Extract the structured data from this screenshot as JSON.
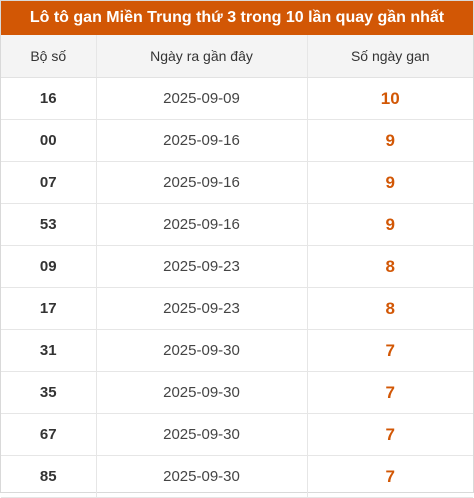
{
  "title": "Lô tô gan Miền Trung thứ 3 trong 10 lần quay gần nhất",
  "columns": {
    "number": "Bộ số",
    "last_date": "Ngày ra gần đây",
    "days": "Số ngày gan"
  },
  "rows": [
    {
      "number": "16",
      "last_date": "2025-09-09",
      "days": "10"
    },
    {
      "number": "00",
      "last_date": "2025-09-16",
      "days": "9"
    },
    {
      "number": "07",
      "last_date": "2025-09-16",
      "days": "9"
    },
    {
      "number": "53",
      "last_date": "2025-09-16",
      "days": "9"
    },
    {
      "number": "09",
      "last_date": "2025-09-23",
      "days": "8"
    },
    {
      "number": "17",
      "last_date": "2025-09-23",
      "days": "8"
    },
    {
      "number": "31",
      "last_date": "2025-09-30",
      "days": "7"
    },
    {
      "number": "35",
      "last_date": "2025-09-30",
      "days": "7"
    },
    {
      "number": "67",
      "last_date": "2025-09-30",
      "days": "7"
    },
    {
      "number": "85",
      "last_date": "2025-09-30",
      "days": "7"
    }
  ],
  "colors": {
    "accent": "#d25705",
    "header_bg": "#f4f4f4"
  }
}
